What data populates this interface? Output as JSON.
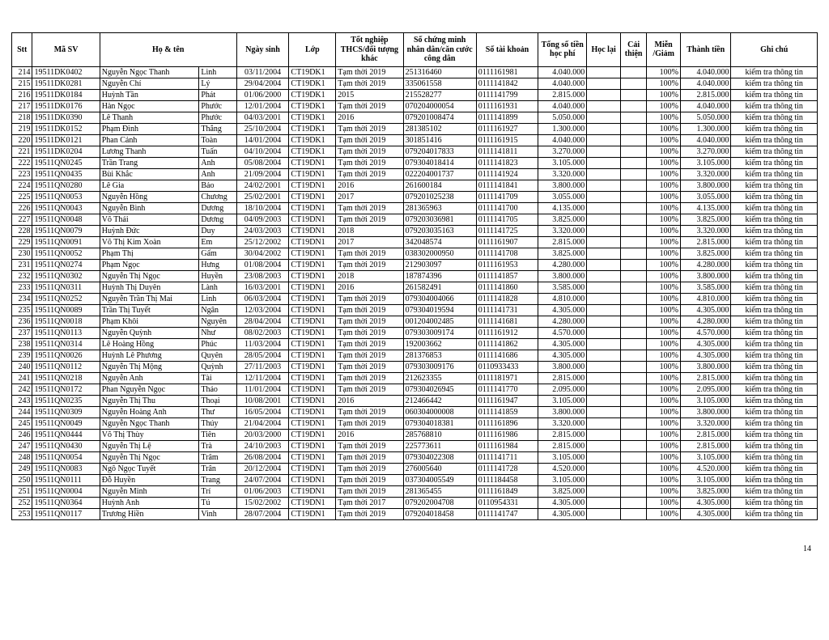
{
  "page_number": "14",
  "headers": {
    "stt": "Stt",
    "masv": "Mã SV",
    "hoten": "Họ & tên",
    "ngaysinh": "Ngày sinh",
    "lop": "Lớp",
    "totnghiep": "Tốt nghiệp THCS/đối tượng khác",
    "cmnd": "Số chứng minh nhân dân/căn cước công dân",
    "taikhoan": "Số tài khoản",
    "hocphi": "Tổng số tiền học phí",
    "hoclai": "Học lại",
    "caithien": "Cải thiện",
    "miengiam": "Miễn /Giảm",
    "thanhtien": "Thành tiền",
    "ghichu": "Ghi chú"
  },
  "rows": [
    {
      "stt": "214",
      "masv": "19511DK0402",
      "ho": "Nguyễn Ngọc Thanh",
      "ten": "Linh",
      "ngay": "03/11/2004",
      "lop": "CT19DK1",
      "tn": "Tạm thời 2019",
      "cm": "251316460",
      "tk": "0111161981",
      "hp": "4.040.000",
      "hl": "",
      "ct": "",
      "mg": "100%",
      "tt": "4.040.000",
      "gc": "kiểm tra thông tin"
    },
    {
      "stt": "215",
      "masv": "19511DK0281",
      "ho": "Nguyễn Chí",
      "ten": "Lý",
      "ngay": "29/04/2004",
      "lop": "CT19DK1",
      "tn": "Tạm thời 2019",
      "cm": "335061558",
      "tk": "0111141842",
      "hp": "4.040.000",
      "hl": "",
      "ct": "",
      "mg": "100%",
      "tt": "4.040.000",
      "gc": "kiểm tra thông tin"
    },
    {
      "stt": "216",
      "masv": "19511DK0184",
      "ho": "Huỳnh Tần",
      "ten": "Phát",
      "ngay": "01/06/2000",
      "lop": "CT19DK1",
      "tn": "2015",
      "cm": "215528277",
      "tk": "0111141799",
      "hp": "2.815.000",
      "hl": "",
      "ct": "",
      "mg": "100%",
      "tt": "2.815.000",
      "gc": "kiểm tra thông tin"
    },
    {
      "stt": "217",
      "masv": "19511DK0176",
      "ho": "Hàn Ngọc",
      "ten": "Phước",
      "ngay": "12/01/2004",
      "lop": "CT19DK1",
      "tn": "Tạm thời 2019",
      "cm": "070204000054",
      "tk": "0111161931",
      "hp": "4.040.000",
      "hl": "",
      "ct": "",
      "mg": "100%",
      "tt": "4.040.000",
      "gc": "kiểm tra thông tin"
    },
    {
      "stt": "218",
      "masv": "19511DK0390",
      "ho": "Lê Thanh",
      "ten": "Phước",
      "ngay": "04/03/2001",
      "lop": "CT19DK1",
      "tn": "2016",
      "cm": "079201008474",
      "tk": "0111141899",
      "hp": "5.050.000",
      "hl": "",
      "ct": "",
      "mg": "100%",
      "tt": "5.050.000",
      "gc": "kiểm tra thông tin"
    },
    {
      "stt": "219",
      "masv": "19511DK0152",
      "ho": "Phạm Đình",
      "ten": "Thắng",
      "ngay": "25/10/2004",
      "lop": "CT19DK1",
      "tn": "Tạm thời 2019",
      "cm": "281385102",
      "tk": "0111161927",
      "hp": "1.300.000",
      "hl": "",
      "ct": "",
      "mg": "100%",
      "tt": "1.300.000",
      "gc": "kiểm tra thông tin"
    },
    {
      "stt": "220",
      "masv": "19511DK0121",
      "ho": "Phan Cảnh",
      "ten": "Toàn",
      "ngay": "14/01/2004",
      "lop": "CT19DK1",
      "tn": "Tạm thời 2019",
      "cm": "301851416",
      "tk": "0111161915",
      "hp": "4.040.000",
      "hl": "",
      "ct": "",
      "mg": "100%",
      "tt": "4.040.000",
      "gc": "kiểm tra thông tin"
    },
    {
      "stt": "221",
      "masv": "19511DK0204",
      "ho": "Lương Thanh",
      "ten": "Tuấn",
      "ngay": "04/10/2004",
      "lop": "CT19DK1",
      "tn": "Tạm thời 2019",
      "cm": "079204017833",
      "tk": "0111141811",
      "hp": "3.270.000",
      "hl": "",
      "ct": "",
      "mg": "100%",
      "tt": "3.270.000",
      "gc": "kiểm tra thông tin"
    },
    {
      "stt": "222",
      "masv": "19511QN0245",
      "ho": "Trần Trang",
      "ten": "Anh",
      "ngay": "05/08/2004",
      "lop": "CT19DN1",
      "tn": "Tạm thời 2019",
      "cm": "079304018414",
      "tk": "0111141823",
      "hp": "3.105.000",
      "hl": "",
      "ct": "",
      "mg": "100%",
      "tt": "3.105.000",
      "gc": "kiểm tra thông tin"
    },
    {
      "stt": "223",
      "masv": "19511QN0435",
      "ho": "Bùi Khắc",
      "ten": "Anh",
      "ngay": "21/09/2004",
      "lop": "CT19DN1",
      "tn": "Tạm thời 2019",
      "cm": "022204001737",
      "tk": "0111141924",
      "hp": "3.320.000",
      "hl": "",
      "ct": "",
      "mg": "100%",
      "tt": "3.320.000",
      "gc": "kiểm tra thông tin"
    },
    {
      "stt": "224",
      "masv": "19511QN0280",
      "ho": "Lê Gia",
      "ten": "Bảo",
      "ngay": "24/02/2001",
      "lop": "CT19DN1",
      "tn": "2016",
      "cm": "261600184",
      "tk": "0111141841",
      "hp": "3.800.000",
      "hl": "",
      "ct": "",
      "mg": "100%",
      "tt": "3.800.000",
      "gc": "kiểm tra thông tin"
    },
    {
      "stt": "225",
      "masv": "19511QN0053",
      "ho": "Nguyễn Hồng",
      "ten": "Chương",
      "ngay": "25/02/2001",
      "lop": "CT19DN1",
      "tn": "2017",
      "cm": "079201025238",
      "tk": "0111141709",
      "hp": "3.055.000",
      "hl": "",
      "ct": "",
      "mg": "100%",
      "tt": "3.055.000",
      "gc": "kiểm tra thông tin"
    },
    {
      "stt": "226",
      "masv": "19511QN0043",
      "ho": "Nguyễn Bình",
      "ten": "Dương",
      "ngay": "18/10/2004",
      "lop": "CT19DN1",
      "tn": "Tạm thời 2019",
      "cm": "281365963",
      "tk": "0111141700",
      "hp": "4.135.000",
      "hl": "",
      "ct": "",
      "mg": "100%",
      "tt": "4.135.000",
      "gc": "kiểm tra thông tin"
    },
    {
      "stt": "227",
      "masv": "19511QN0048",
      "ho": "Võ Thái",
      "ten": "Dương",
      "ngay": "04/09/2003",
      "lop": "CT19DN1",
      "tn": "Tạm thời 2019",
      "cm": "079203036981",
      "tk": "0111141705",
      "hp": "3.825.000",
      "hl": "",
      "ct": "",
      "mg": "100%",
      "tt": "3.825.000",
      "gc": "kiểm tra thông tin"
    },
    {
      "stt": "228",
      "masv": "19511QN0079",
      "ho": "Huỳnh Đức",
      "ten": "Duy",
      "ngay": "24/03/2003",
      "lop": "CT19DN1",
      "tn": "2018",
      "cm": "079203035163",
      "tk": "0111141725",
      "hp": "3.320.000",
      "hl": "",
      "ct": "",
      "mg": "100%",
      "tt": "3.320.000",
      "gc": "kiểm tra thông tin"
    },
    {
      "stt": "229",
      "masv": "19511QN0091",
      "ho": "Võ Thị Kim Xoàn",
      "ten": "Em",
      "ngay": "25/12/2002",
      "lop": "CT19DN1",
      "tn": "2017",
      "cm": "342048574",
      "tk": "0111161907",
      "hp": "2.815.000",
      "hl": "",
      "ct": "",
      "mg": "100%",
      "tt": "2.815.000",
      "gc": "kiểm tra thông tin"
    },
    {
      "stt": "230",
      "masv": "19511QN0052",
      "ho": "Phạm Thị",
      "ten": "Gấm",
      "ngay": "30/04/2002",
      "lop": "CT19DN1",
      "tn": "Tạm thời 2019",
      "cm": "038302000950",
      "tk": "0111141708",
      "hp": "3.825.000",
      "hl": "",
      "ct": "",
      "mg": "100%",
      "tt": "3.825.000",
      "gc": "kiểm tra thông tin"
    },
    {
      "stt": "231",
      "masv": "19511QN0274",
      "ho": "Phạm Ngọc",
      "ten": "Hưng",
      "ngay": "01/08/2004",
      "lop": "CT19DN1",
      "tn": "Tạm thời 2019",
      "cm": "212903097",
      "tk": "0111161953",
      "hp": "4.280.000",
      "hl": "",
      "ct": "",
      "mg": "100%",
      "tt": "4.280.000",
      "gc": "kiểm tra thông tin"
    },
    {
      "stt": "232",
      "masv": "19511QN0302",
      "ho": "Nguyễn Thị Ngọc",
      "ten": "Huyền",
      "ngay": "23/08/2003",
      "lop": "CT19DN1",
      "tn": "2018",
      "cm": "187874396",
      "tk": "0111141857",
      "hp": "3.800.000",
      "hl": "",
      "ct": "",
      "mg": "100%",
      "tt": "3.800.000",
      "gc": "kiểm tra thông tin"
    },
    {
      "stt": "233",
      "masv": "19511QN0311",
      "ho": "Huỳnh Thị Duyên",
      "ten": "Lành",
      "ngay": "16/03/2001",
      "lop": "CT19DN1",
      "tn": "2016",
      "cm": "261582491",
      "tk": "0111141860",
      "hp": "3.585.000",
      "hl": "",
      "ct": "",
      "mg": "100%",
      "tt": "3.585.000",
      "gc": "kiểm tra thông tin"
    },
    {
      "stt": "234",
      "masv": "19511QN0252",
      "ho": "Nguyễn Trần Thị Mai",
      "ten": "Linh",
      "ngay": "06/03/2004",
      "lop": "CT19DN1",
      "tn": "Tạm thời 2019",
      "cm": "079304004066",
      "tk": "0111141828",
      "hp": "4.810.000",
      "hl": "",
      "ct": "",
      "mg": "100%",
      "tt": "4.810.000",
      "gc": "kiểm tra thông tin"
    },
    {
      "stt": "235",
      "masv": "19511QN0089",
      "ho": "Trần Thị Tuyết",
      "ten": "Ngân",
      "ngay": "12/03/2004",
      "lop": "CT19DN1",
      "tn": "Tạm thời 2019",
      "cm": "079304019594",
      "tk": "0111141731",
      "hp": "4.305.000",
      "hl": "",
      "ct": "",
      "mg": "100%",
      "tt": "4.305.000",
      "gc": "kiểm tra thông tin"
    },
    {
      "stt": "236",
      "masv": "19511QN0018",
      "ho": "Phạm Khôi",
      "ten": "Nguyên",
      "ngay": "28/04/2004",
      "lop": "CT19DN1",
      "tn": "Tạm thời 2019",
      "cm": "001204002485",
      "tk": "0111141681",
      "hp": "4.280.000",
      "hl": "",
      "ct": "",
      "mg": "100%",
      "tt": "4.280.000",
      "gc": "kiểm tra thông tin"
    },
    {
      "stt": "237",
      "masv": "19511QN0113",
      "ho": "Nguyễn Quỳnh",
      "ten": "Như",
      "ngay": "08/02/2003",
      "lop": "CT19DN1",
      "tn": "Tạm thời 2019",
      "cm": "079303009174",
      "tk": "0111161912",
      "hp": "4.570.000",
      "hl": "",
      "ct": "",
      "mg": "100%",
      "tt": "4.570.000",
      "gc": "kiểm tra thông tin"
    },
    {
      "stt": "238",
      "masv": "19511QN0314",
      "ho": "Lê Hoàng Hồng",
      "ten": "Phúc",
      "ngay": "11/03/2004",
      "lop": "CT19DN1",
      "tn": "Tạm thời 2019",
      "cm": "192003662",
      "tk": "0111141862",
      "hp": "4.305.000",
      "hl": "",
      "ct": "",
      "mg": "100%",
      "tt": "4.305.000",
      "gc": "kiểm tra thông tin"
    },
    {
      "stt": "239",
      "masv": "19511QN0026",
      "ho": "Huỳnh Lê Phương",
      "ten": "Quyên",
      "ngay": "28/05/2004",
      "lop": "CT19DN1",
      "tn": "Tạm thời 2019",
      "cm": "281376853",
      "tk": "0111141686",
      "hp": "4.305.000",
      "hl": "",
      "ct": "",
      "mg": "100%",
      "tt": "4.305.000",
      "gc": "kiểm tra thông tin"
    },
    {
      "stt": "240",
      "masv": "19511QN0112",
      "ho": "Nguyễn Thị Mộng",
      "ten": "Quỳnh",
      "ngay": "27/11/2003",
      "lop": "CT19DN1",
      "tn": "Tạm thời 2019",
      "cm": "079303009176",
      "tk": "0110933433",
      "hp": "3.800.000",
      "hl": "",
      "ct": "",
      "mg": "100%",
      "tt": "3.800.000",
      "gc": "kiểm tra thông tin"
    },
    {
      "stt": "241",
      "masv": "19511QN0218",
      "ho": "Nguyễn Anh",
      "ten": "Tài",
      "ngay": "12/11/2004",
      "lop": "CT19DN1",
      "tn": "Tạm thời 2019",
      "cm": "212623355",
      "tk": "0111181971",
      "hp": "2.815.000",
      "hl": "",
      "ct": "",
      "mg": "100%",
      "tt": "2.815.000",
      "gc": "kiểm tra thông tin"
    },
    {
      "stt": "242",
      "masv": "19511QN0172",
      "ho": "Phan Nguyễn Ngọc",
      "ten": "Thảo",
      "ngay": "11/01/2004",
      "lop": "CT19DN1",
      "tn": "Tạm thời 2019",
      "cm": "079304026945",
      "tk": "0111141770",
      "hp": "2.095.000",
      "hl": "",
      "ct": "",
      "mg": "100%",
      "tt": "2.095.000",
      "gc": "kiểm tra thông tin"
    },
    {
      "stt": "243",
      "masv": "19511QN0235",
      "ho": "Nguyễn Thị Thu",
      "ten": "Thoại",
      "ngay": "10/08/2001",
      "lop": "CT19DN1",
      "tn": "2016",
      "cm": "212466442",
      "tk": "0111161947",
      "hp": "3.105.000",
      "hl": "",
      "ct": "",
      "mg": "100%",
      "tt": "3.105.000",
      "gc": "kiểm tra thông tin"
    },
    {
      "stt": "244",
      "masv": "19511QN0309",
      "ho": "Nguyễn Hoàng Anh",
      "ten": "Thư",
      "ngay": "16/05/2004",
      "lop": "CT19DN1",
      "tn": "Tạm thời 2019",
      "cm": "060304000008",
      "tk": "0111141859",
      "hp": "3.800.000",
      "hl": "",
      "ct": "",
      "mg": "100%",
      "tt": "3.800.000",
      "gc": "kiểm tra thông tin"
    },
    {
      "stt": "245",
      "masv": "19511QN0049",
      "ho": "Nguyễn Ngọc Thanh",
      "ten": "Thúy",
      "ngay": "21/04/2004",
      "lop": "CT19DN1",
      "tn": "Tạm thời 2019",
      "cm": "079304018381",
      "tk": "0111161896",
      "hp": "3.320.000",
      "hl": "",
      "ct": "",
      "mg": "100%",
      "tt": "3.320.000",
      "gc": "kiểm tra thông tin"
    },
    {
      "stt": "246",
      "masv": "19511QN0444",
      "ho": "Võ Thị Thùy",
      "ten": "Tiên",
      "ngay": "20/03/2000",
      "lop": "CT19DN1",
      "tn": "2016",
      "cm": "285768810",
      "tk": "0111161986",
      "hp": "2.815.000",
      "hl": "",
      "ct": "",
      "mg": "100%",
      "tt": "2.815.000",
      "gc": "kiểm tra thông tin"
    },
    {
      "stt": "247",
      "masv": "19511QN0430",
      "ho": "Nguyễn Thị Lệ",
      "ten": "Trà",
      "ngay": "24/10/2003",
      "lop": "CT19DN1",
      "tn": "Tạm thời 2019",
      "cm": "225773611",
      "tk": "0111161984",
      "hp": "2.815.000",
      "hl": "",
      "ct": "",
      "mg": "100%",
      "tt": "2.815.000",
      "gc": "kiểm tra thông tin"
    },
    {
      "stt": "248",
      "masv": "19511QN0054",
      "ho": "Nguyễn Thị Ngọc",
      "ten": "Trâm",
      "ngay": "26/08/2004",
      "lop": "CT19DN1",
      "tn": "Tạm thời 2019",
      "cm": "079304022308",
      "tk": "0111141711",
      "hp": "3.105.000",
      "hl": "",
      "ct": "",
      "mg": "100%",
      "tt": "3.105.000",
      "gc": "kiểm tra thông tin"
    },
    {
      "stt": "249",
      "masv": "19511QN0083",
      "ho": "Ngô Ngọc Tuyết",
      "ten": "Trân",
      "ngay": "20/12/2004",
      "lop": "CT19DN1",
      "tn": "Tạm thời 2019",
      "cm": "276005640",
      "tk": "0111141728",
      "hp": "4.520.000",
      "hl": "",
      "ct": "",
      "mg": "100%",
      "tt": "4.520.000",
      "gc": "kiểm tra thông tin"
    },
    {
      "stt": "250",
      "masv": "19511QN0111",
      "ho": "Đỗ Huyền",
      "ten": "Trang",
      "ngay": "24/07/2004",
      "lop": "CT19DN1",
      "tn": "Tạm thời 2019",
      "cm": "037304005549",
      "tk": "0111184458",
      "hp": "3.105.000",
      "hl": "",
      "ct": "",
      "mg": "100%",
      "tt": "3.105.000",
      "gc": "kiểm tra thông tin"
    },
    {
      "stt": "251",
      "masv": "19511QN0004",
      "ho": "Nguyễn Minh",
      "ten": "Trí",
      "ngay": "01/06/2003",
      "lop": "CT19DN1",
      "tn": "Tạm thời 2019",
      "cm": "281365455",
      "tk": "0111161849",
      "hp": "3.825.000",
      "hl": "",
      "ct": "",
      "mg": "100%",
      "tt": "3.825.000",
      "gc": "kiểm tra thông tin"
    },
    {
      "stt": "252",
      "masv": "19511QN0364",
      "ho": "Huỳnh Anh",
      "ten": "Tú",
      "ngay": "15/02/2002",
      "lop": "CT19DN1",
      "tn": "Tạm thời 2017",
      "cm": "079202004708",
      "tk": "0110954331",
      "hp": "4.305.000",
      "hl": "",
      "ct": "",
      "mg": "100%",
      "tt": "4.305.000",
      "gc": "kiểm tra thông tin"
    },
    {
      "stt": "253",
      "masv": "19511QN0117",
      "ho": "Trương Hiền",
      "ten": "Vinh",
      "ngay": "28/07/2004",
      "lop": "CT19DN1",
      "tn": "Tạm thời 2019",
      "cm": "079204018458",
      "tk": "0111141747",
      "hp": "4.305.000",
      "hl": "",
      "ct": "",
      "mg": "100%",
      "tt": "4.305.000",
      "gc": "kiểm tra thông tin"
    }
  ]
}
